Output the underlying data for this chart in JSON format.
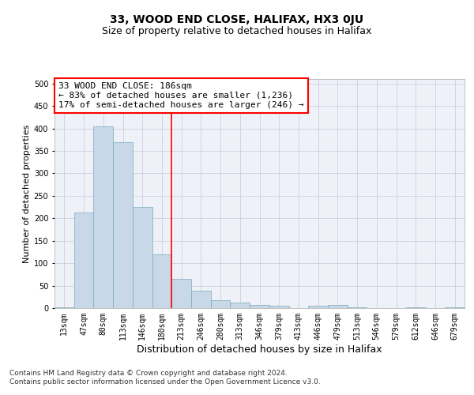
{
  "title_line1": "33, WOOD END CLOSE, HALIFAX, HX3 0JU",
  "title_line2": "Size of property relative to detached houses in Halifax",
  "xlabel": "Distribution of detached houses by size in Halifax",
  "ylabel": "Number of detached properties",
  "categories": [
    "13sqm",
    "47sqm",
    "80sqm",
    "113sqm",
    "146sqm",
    "180sqm",
    "213sqm",
    "246sqm",
    "280sqm",
    "313sqm",
    "346sqm",
    "379sqm",
    "413sqm",
    "446sqm",
    "479sqm",
    "513sqm",
    "546sqm",
    "579sqm",
    "612sqm",
    "646sqm",
    "679sqm"
  ],
  "values": [
    2,
    213,
    405,
    370,
    225,
    120,
    65,
    38,
    17,
    13,
    7,
    6,
    0,
    6,
    7,
    2,
    0,
    0,
    2,
    0,
    1
  ],
  "bar_color": "#c8d8e8",
  "bar_edge_color": "#7aaabb",
  "vline_x": 5.5,
  "vline_color": "red",
  "annotation_text": "33 WOOD END CLOSE: 186sqm\n← 83% of detached houses are smaller (1,236)\n17% of semi-detached houses are larger (246) →",
  "annotation_box_color": "white",
  "annotation_box_edge_color": "red",
  "ylim": [
    0,
    510
  ],
  "yticks": [
    0,
    50,
    100,
    150,
    200,
    250,
    300,
    350,
    400,
    450,
    500
  ],
  "background_color": "#eef2f8",
  "grid_color": "#c8c8d8",
  "footnote": "Contains HM Land Registry data © Crown copyright and database right 2024.\nContains public sector information licensed under the Open Government Licence v3.0.",
  "title_fontsize": 10,
  "subtitle_fontsize": 9,
  "xlabel_fontsize": 9,
  "ylabel_fontsize": 8,
  "tick_fontsize": 7,
  "annotation_fontsize": 8,
  "footnote_fontsize": 6.5
}
